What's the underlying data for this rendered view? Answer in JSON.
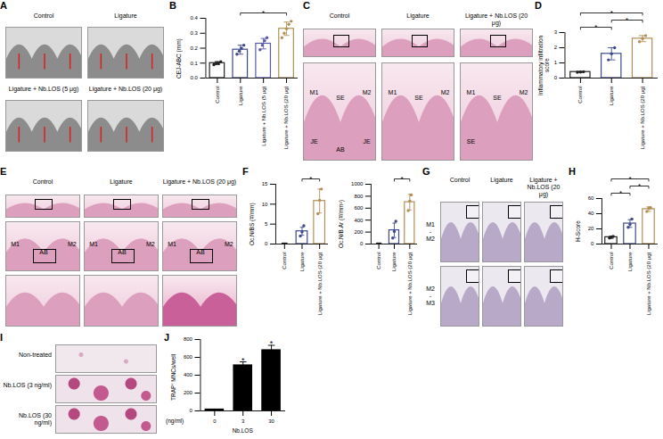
{
  "chart_data": [
    {
      "type": "bar",
      "panel": "B",
      "ylabel": "CEJ-ABC (mm)",
      "categories": [
        "Control",
        "Ligature",
        "Ligature + Nb.LOS (5 μg)",
        "Ligature + Nb.LOS (20 μg)"
      ],
      "values": [
        0.1,
        0.19,
        0.23,
        0.33
      ],
      "errors": [
        0.01,
        0.03,
        0.035,
        0.045
      ],
      "points": [
        [
          0.09,
          0.1,
          0.1,
          0.11
        ],
        [
          0.16,
          0.18,
          0.2,
          0.22
        ],
        [
          0.19,
          0.22,
          0.25,
          0.27
        ],
        [
          0.27,
          0.3,
          0.33,
          0.36,
          0.38
        ]
      ],
      "colors": [
        "#222222",
        "#3d4a8c",
        "#5b5aa8",
        "#b38f55"
      ],
      "marker": "circle",
      "ylim": [
        0,
        0.4
      ],
      "yticks": [
        {
          "value": 0,
          "label": "0.0"
        },
        0.1,
        0.2,
        0.3,
        0.4
      ],
      "significance": [
        {
          "from": "Ligature",
          "to": "Ligature + Nb.LOS (20 μg)",
          "label": "*"
        }
      ]
    },
    {
      "type": "bar",
      "panel": "D",
      "ylabel": "Inflammatory infiltration score",
      "categories": [
        "Control",
        "Ligature",
        "Ligature + Nb.LOS (20 μg)"
      ],
      "values": [
        0.4,
        1.6,
        2.6
      ],
      "errors": [
        0.03,
        0.4,
        0.2
      ],
      "points": [
        [
          0.38,
          0.4,
          0.42
        ],
        [
          1.2,
          1.6,
          2.0
        ],
        [
          2.4,
          2.6,
          2.8
        ]
      ],
      "colors": [
        "#222222",
        "#3d4a8c",
        "#b38f55"
      ],
      "marker": "circle",
      "ylim": [
        0,
        3
      ],
      "yticks": [
        0,
        1,
        2,
        3
      ],
      "significance": [
        {
          "from": "Control",
          "to": "Ligature",
          "label": "*"
        },
        {
          "from": "Control",
          "to": "Ligature + Nb.LOS (20 μg)",
          "label": "*"
        },
        {
          "from": "Ligature",
          "to": "Ligature + Nb.LOS (20 μg)",
          "label": "*"
        }
      ]
    },
    {
      "type": "bar",
      "panel": "F",
      "ylabel": "Oc.N/BS (#/mm)",
      "categories": [
        "Control",
        "Ligature",
        "Ligature + Nb.LOS (20 μg)"
      ],
      "values": [
        0,
        3.2,
        10.8
      ],
      "errors": [
        0,
        1,
        3
      ],
      "points": [
        [
          0,
          0,
          0
        ],
        [
          2,
          3,
          4.6
        ],
        [
          7.6,
          11,
          13.8
        ]
      ],
      "colors": [
        "#222222",
        "#3d4a8c",
        "#b38f55"
      ],
      "marker": "circle",
      "ylim": [
        0,
        15
      ],
      "yticks": [
        0,
        5,
        10,
        15
      ],
      "significance": [
        {
          "from": "Ligature",
          "to": "Ligature + Nb.LOS (20 μg)",
          "label": "*"
        }
      ]
    },
    {
      "type": "bar",
      "ylabel": "Oc.N/B.Ar (#/mm²)",
      "categories": [
        "Control",
        "Ligature",
        "Ligature + Nb.LOS (20 μg)"
      ],
      "values": [
        0,
        230,
        700
      ],
      "errors": [
        0,
        120,
        130
      ],
      "points": [
        [
          0,
          0,
          0
        ],
        [
          100,
          210,
          380
        ],
        [
          560,
          720,
          820
        ]
      ],
      "colors": [
        "#222222",
        "#3d4a8c",
        "#b38f55"
      ],
      "marker": "circle",
      "ylim": [
        0,
        1000
      ],
      "yticks": [
        0,
        200,
        400,
        600,
        800,
        1000
      ],
      "significance": [
        {
          "from": "Ligature",
          "to": "Ligature + Nb.LOS (20 μg)",
          "label": "*"
        }
      ]
    },
    {
      "type": "bar",
      "panel": "H",
      "ylabel": "H-Score",
      "categories": [
        "Control",
        "Ligature",
        "Ligature + Nb.LOS (20 μg)"
      ],
      "values": [
        9,
        27,
        46
      ],
      "errors": [
        1.5,
        5,
        3
      ],
      "points": [
        [
          8,
          9,
          10
        ],
        [
          22,
          26,
          33
        ],
        [
          43,
          47,
          48
        ]
      ],
      "colors": [
        "#222222",
        "#3d4a8c",
        "#b38f55"
      ],
      "marker": "circle",
      "ylim": [
        0,
        60
      ],
      "yticks": [
        0,
        20,
        40,
        60
      ],
      "significance": [
        {
          "from": "Control",
          "to": "Ligature",
          "label": "*"
        },
        {
          "from": "Control",
          "to": "Ligature + Nb.LOS (20 μg)",
          "label": "*"
        },
        {
          "from": "Ligature",
          "to": "Ligature + Nb.LOS (20 μg)",
          "label": "*"
        }
      ]
    },
    {
      "type": "bar",
      "panel": "J",
      "ylabel": "TRAP⁺ MNCs/well",
      "xlabel": "Nb.LOS",
      "x_unit_label": "(ng/ml)",
      "categories": [
        "0",
        "3",
        "30"
      ],
      "values": [
        15,
        510,
        680
      ],
      "errors": [
        5,
        40,
        55
      ],
      "color": "#000000",
      "ylim": [
        0,
        800
      ],
      "yticks": [
        0,
        200,
        400,
        600,
        800
      ],
      "significance": [
        {
          "category": "3",
          "label": "*"
        },
        {
          "category": "30",
          "label": "*"
        }
      ]
    }
  ],
  "image_panels": [
    {
      "letter": "A",
      "labels": [
        "Control",
        "Ligature",
        "Ligature + Nb.LOS (5 μg)",
        "Ligature + Nb.LOS (20 μg)"
      ]
    },
    {
      "letter": "C",
      "columns": [
        "Control",
        "Ligature",
        "Ligature + Nb.LOS (20 μg)"
      ],
      "annotations": [
        [
          "M1",
          "SE",
          "M2",
          "JE",
          "AB",
          "JE"
        ],
        [
          "M1",
          "SE",
          "M2"
        ],
        [
          "M1",
          "SE",
          "M2",
          "SE"
        ]
      ]
    },
    {
      "letter": "E",
      "columns": [
        "Control",
        "Ligature",
        "Ligature + Nb.LOS (20 μg)"
      ],
      "annotations": [
        [
          "M1",
          "AB",
          "M2"
        ],
        [
          "M1",
          "AB",
          "M2"
        ],
        [
          "M1",
          "AB",
          "M2"
        ]
      ]
    },
    {
      "letter": "G",
      "columns": [
        "Control",
        "Ligature",
        "Ligature + Nb.LOS (20 μg)"
      ],
      "row_labels": [
        "M1 - M2",
        "M2 - M3"
      ]
    },
    {
      "letter": "I",
      "row_labels": [
        "Non-treated",
        "Nb.LOS (3 ng/ml)",
        "Nb.LOS (30 ng/ml)"
      ]
    }
  ]
}
